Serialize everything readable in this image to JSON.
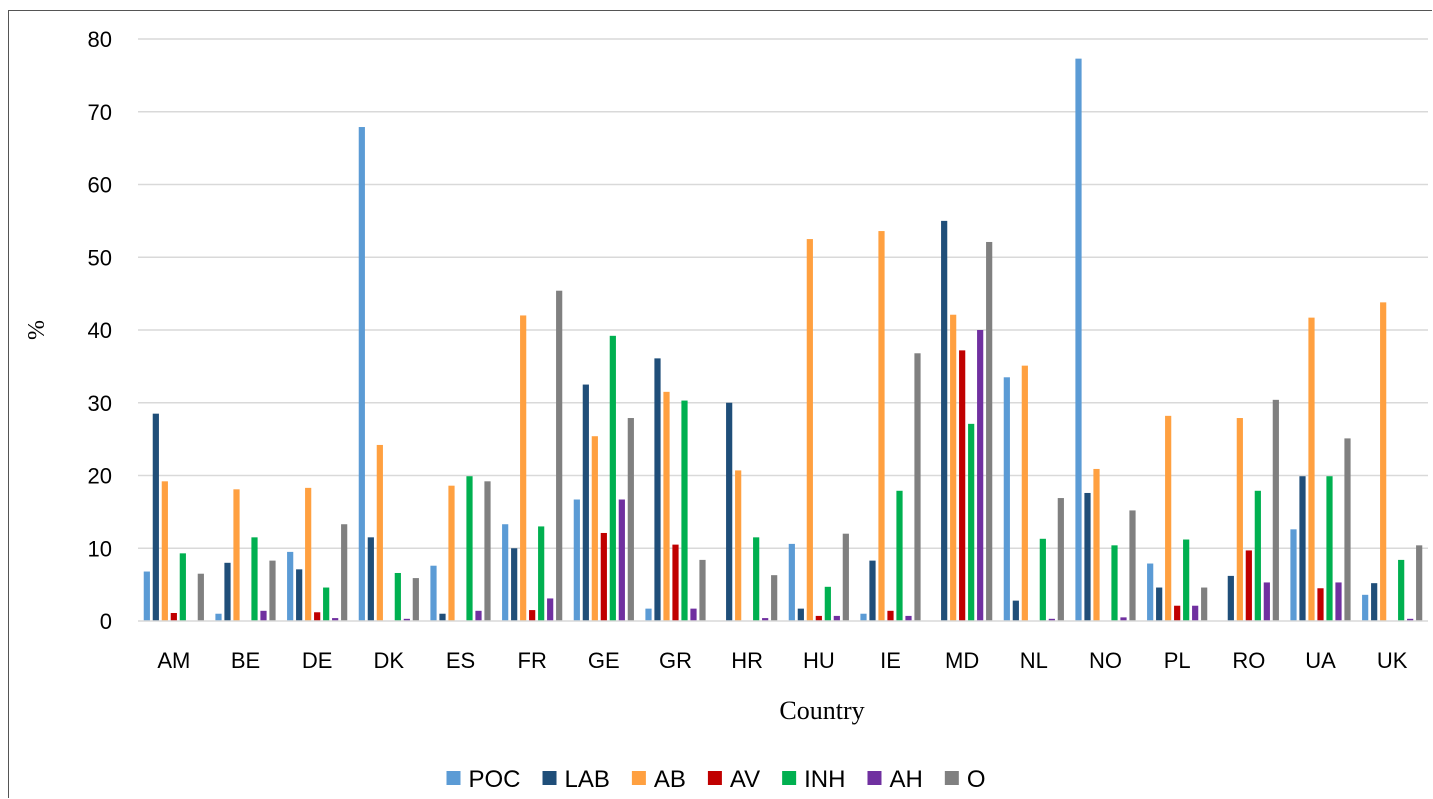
{
  "chart_data": {
    "type": "bar",
    "title": "",
    "xlabel": "Country",
    "ylabel": "%",
    "ylim": [
      0,
      80
    ],
    "yticks": [
      "0",
      "10",
      "20",
      "30",
      "40",
      "50",
      "60",
      "70",
      "80"
    ],
    "grid": true,
    "legend_position": "bottom",
    "categories": [
      "AM",
      "BE",
      "DE",
      "DK",
      "ES",
      "FR",
      "GE",
      "GR",
      "HR",
      "HU",
      "IE",
      "MD",
      "NL",
      "NO",
      "PL",
      "RO",
      "UA",
      "UK"
    ],
    "series": [
      {
        "name": "POC",
        "color": "#5B9BD5",
        "values": [
          6.8,
          1.0,
          9.5,
          67.9,
          7.6,
          13.3,
          16.7,
          1.7,
          0,
          10.6,
          1.0,
          0,
          33.5,
          77.3,
          7.9,
          0,
          12.6,
          3.6
        ]
      },
      {
        "name": "LAB",
        "color": "#1F4E79",
        "values": [
          28.5,
          8.0,
          7.1,
          11.5,
          1.0,
          10.0,
          32.5,
          36.1,
          30.0,
          1.7,
          8.3,
          55.0,
          2.8,
          17.6,
          4.6,
          6.2,
          19.9,
          5.2
        ]
      },
      {
        "name": "AB",
        "color": "#FFA040",
        "values": [
          19.2,
          18.1,
          18.3,
          24.2,
          18.6,
          42.0,
          25.4,
          31.5,
          20.7,
          52.5,
          53.6,
          42.1,
          35.1,
          20.9,
          28.2,
          27.9,
          41.7,
          43.8
        ]
      },
      {
        "name": "AV",
        "color": "#C00000",
        "values": [
          1.1,
          0,
          1.2,
          0,
          0,
          1.5,
          12.1,
          10.5,
          0,
          0.7,
          1.4,
          37.2,
          0,
          0,
          2.1,
          9.7,
          4.5,
          0
        ]
      },
      {
        "name": "INH",
        "color": "#00B050",
        "values": [
          9.3,
          11.5,
          4.6,
          6.6,
          19.9,
          13.0,
          39.2,
          30.3,
          11.5,
          4.7,
          17.9,
          27.1,
          11.3,
          10.4,
          11.2,
          17.9,
          19.9,
          8.4
        ]
      },
      {
        "name": "AH",
        "color": "#7030A0",
        "values": [
          0,
          1.4,
          0.4,
          0.3,
          1.4,
          3.1,
          16.7,
          1.7,
          0.4,
          0.7,
          0.7,
          40.0,
          0.3,
          0.5,
          2.1,
          5.3,
          5.3,
          0.3
        ]
      },
      {
        "name": "O",
        "color": "#808080",
        "values": [
          6.5,
          8.3,
          13.3,
          5.9,
          19.2,
          45.4,
          27.9,
          8.4,
          6.3,
          12.0,
          36.8,
          52.1,
          16.9,
          15.2,
          4.6,
          30.4,
          25.1,
          10.4
        ]
      }
    ]
  }
}
